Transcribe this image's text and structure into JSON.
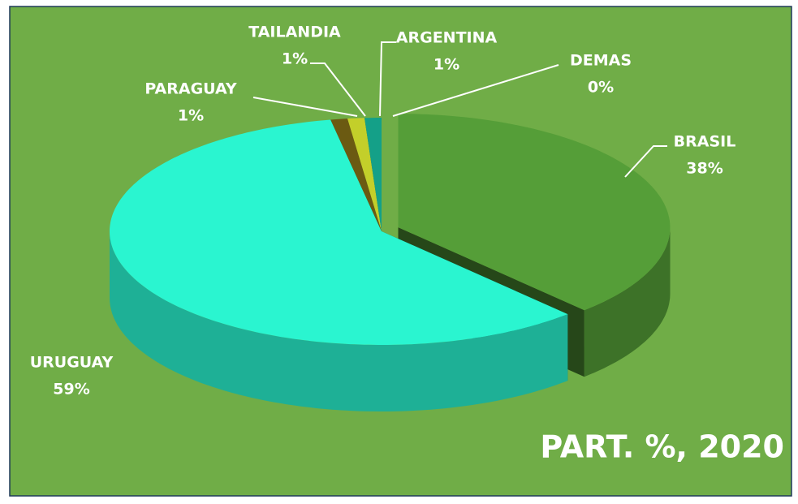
{
  "chart_data": {
    "type": "pie",
    "title": "PART. %, 2020",
    "categories": [
      "BRASIL",
      "URUGUAY",
      "PARAGUAY",
      "TAILANDIA",
      "ARGENTINA",
      "DEMAS"
    ],
    "values": [
      38,
      59,
      1,
      1,
      1,
      0
    ],
    "value_labels": [
      "38%",
      "59%",
      "1%",
      "1%",
      "1%",
      "0%"
    ],
    "colors": [
      "#559e38",
      "#2af5d0",
      "#6b5a12",
      "#c3cf2a",
      "#14a088",
      "#2a93c9"
    ]
  }
}
